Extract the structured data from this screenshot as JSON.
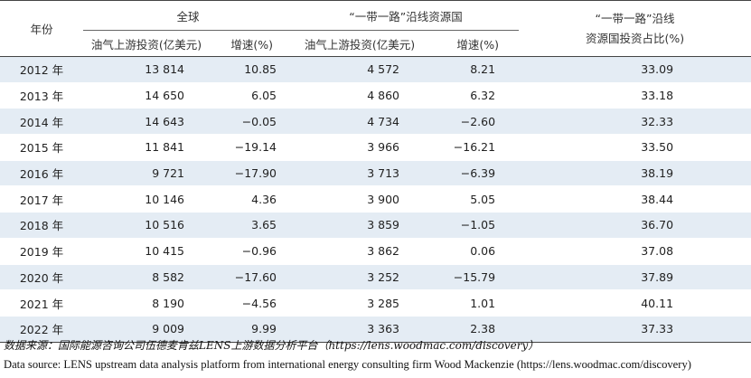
{
  "header": {
    "year": "年份",
    "global_group": "全球",
    "br_group": "“一带一路”沿线资源国",
    "share_line1": "“一带一路”沿线",
    "share_line2": "资源国投资占比(%)",
    "global_inv": "油气上游投资(亿美元)",
    "global_rate": "增速(%)",
    "br_inv": "油气上游投资(亿美元)",
    "br_rate": "增速(%)"
  },
  "rows": [
    {
      "year": "2012 年",
      "global_inv": "13 814",
      "global_rate": "10.85",
      "br_inv": "4 572",
      "br_rate": "8.21",
      "share": "33.09"
    },
    {
      "year": "2013 年",
      "global_inv": "14 650",
      "global_rate": "6.05",
      "br_inv": "4 860",
      "br_rate": "6.32",
      "share": "33.18"
    },
    {
      "year": "2014 年",
      "global_inv": "14 643",
      "global_rate": "−0.05",
      "br_inv": "4 734",
      "br_rate": "−2.60",
      "share": "32.33"
    },
    {
      "year": "2015 年",
      "global_inv": "11 841",
      "global_rate": "−19.14",
      "br_inv": "3 966",
      "br_rate": "−16.21",
      "share": "33.50"
    },
    {
      "year": "2016 年",
      "global_inv": "9 721",
      "global_rate": "−17.90",
      "br_inv": "3 713",
      "br_rate": "−6.39",
      "share": "38.19"
    },
    {
      "year": "2017 年",
      "global_inv": "10 146",
      "global_rate": "4.36",
      "br_inv": "3 900",
      "br_rate": "5.05",
      "share": "38.44"
    },
    {
      "year": "2018 年",
      "global_inv": "10 516",
      "global_rate": "3.65",
      "br_inv": "3 859",
      "br_rate": "−1.05",
      "share": "36.70"
    },
    {
      "year": "2019 年",
      "global_inv": "10 415",
      "global_rate": "−0.96",
      "br_inv": "3 862",
      "br_rate": "0.06",
      "share": "37.08"
    },
    {
      "year": "2020 年",
      "global_inv": "8 582",
      "global_rate": "−17.60",
      "br_inv": "3 252",
      "br_rate": "−15.79",
      "share": "37.89"
    },
    {
      "year": "2021 年",
      "global_inv": "8 190",
      "global_rate": "−4.56",
      "br_inv": "3 285",
      "br_rate": "1.01",
      "share": "40.11"
    },
    {
      "year": "2022 年",
      "global_inv": "9 009",
      "global_rate": "9.99",
      "br_inv": "3 363",
      "br_rate": "2.38",
      "share": "37.33"
    }
  ],
  "source": {
    "cn": "数据来源：国际能源咨询公司伍德麦肯兹LENS上游数据分析平台（https://lens.woodmac.com/discovery）",
    "en": "Data source: LENS upstream data analysis platform from international energy consulting firm Wood Mackenzie (https://lens.woodmac.com/discovery)"
  },
  "colors": {
    "stripe": "#e4ecf4",
    "rule": "#444444"
  }
}
